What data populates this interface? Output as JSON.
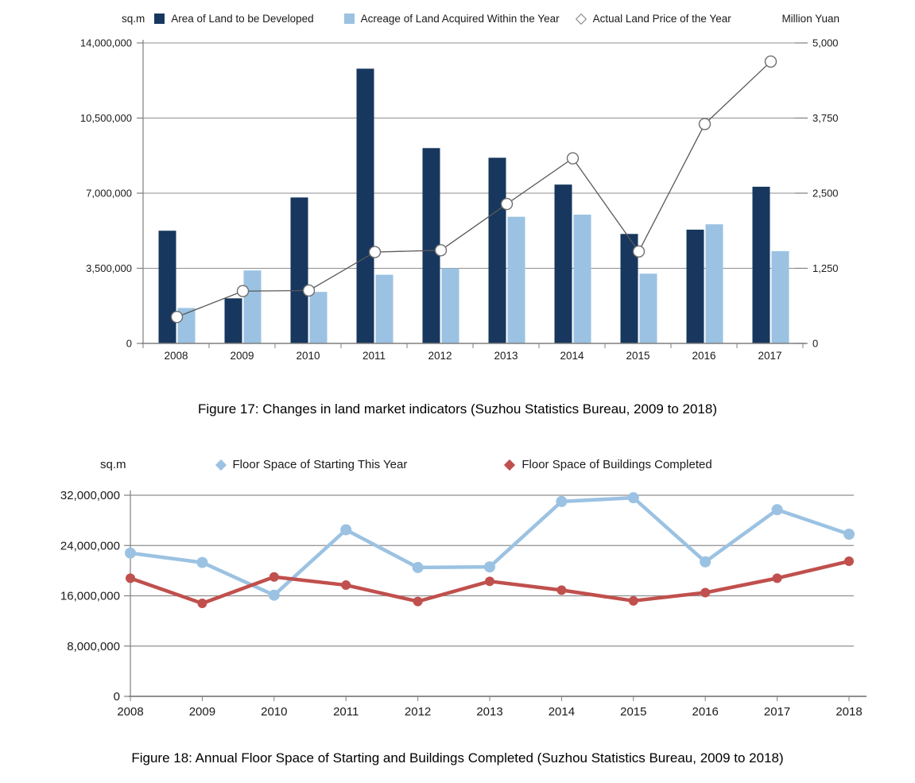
{
  "page": {
    "background": "#ffffff"
  },
  "chart_data": [
    {
      "id": "figure-17",
      "type": "bar",
      "subtype": "combo-bar-line",
      "grid": true,
      "legend_position": "top",
      "categories": [
        "2008",
        "2009",
        "2010",
        "2011",
        "2012",
        "2013",
        "2014",
        "2015",
        "2016",
        "2017"
      ],
      "series": [
        {
          "name": "Area of Land to be Developed",
          "type": "bar",
          "axis": "left",
          "color": "#17375E",
          "values": [
            5250000,
            2100000,
            6800000,
            12800000,
            9100000,
            8650000,
            7400000,
            5100000,
            5300000,
            7300000
          ]
        },
        {
          "name": "Acreage of Land Acquired Within the Year",
          "type": "bar",
          "axis": "left",
          "color": "#9BC2E2",
          "values": [
            1650000,
            3400000,
            2400000,
            3200000,
            3500000,
            5900000,
            6000000,
            3250000,
            5550000,
            4300000
          ]
        },
        {
          "name": "Actual Land Price of the Year",
          "type": "line",
          "axis": "right",
          "color": "#595959",
          "marker": "open-circle",
          "marker_fill": "#FFFFFF",
          "values": [
            440,
            870,
            880,
            1520,
            1550,
            2320,
            3080,
            1530,
            3650,
            4690
          ]
        }
      ],
      "left_axis": {
        "label": "sq.m",
        "min": 0,
        "max": 14000000,
        "ticks": [
          0,
          3500000,
          7000000,
          10500000,
          14000000
        ]
      },
      "right_axis": {
        "label": "Million Yuan",
        "min": 0,
        "max": 5000,
        "ticks": [
          0,
          1250,
          2500,
          3750,
          5000
        ]
      },
      "caption": "Figure 17: Changes in land market indicators (Suzhou Statistics Bureau, 2009 to 2018)"
    },
    {
      "id": "figure-18",
      "type": "line",
      "grid": true,
      "legend_position": "top",
      "categories": [
        "2008",
        "2009",
        "2010",
        "2011",
        "2012",
        "2013",
        "2014",
        "2015",
        "2016",
        "2017",
        "2018"
      ],
      "series": [
        {
          "name": "Floor Space of Starting This Year",
          "color": "#9BC2E2",
          "marker": "circle",
          "values": [
            22800000,
            21300000,
            16100000,
            26500000,
            20500000,
            20600000,
            31000000,
            31600000,
            21400000,
            29700000,
            25800000
          ]
        },
        {
          "name": "Floor Space of Buildings Completed",
          "color": "#C0504D",
          "marker": "circle",
          "values": [
            18800000,
            14800000,
            19000000,
            17700000,
            15100000,
            18300000,
            16900000,
            15200000,
            16500000,
            18800000,
            21500000
          ]
        }
      ],
      "y_axis": {
        "label": "sq.m",
        "min": 0,
        "max": 32000000,
        "ticks": [
          0,
          8000000,
          16000000,
          24000000,
          32000000
        ]
      },
      "caption": "Figure 18: Annual Floor Space of Starting and Buildings Completed (Suzhou Statistics Bureau, 2009 to 2018)"
    }
  ]
}
